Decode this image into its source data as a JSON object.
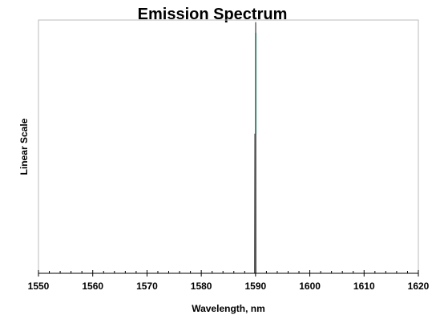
{
  "chart_data": {
    "type": "line",
    "title": "Emission Spectrum",
    "xlabel": "Wavelength, nm",
    "ylabel": "Linear Scale",
    "xlim": [
      1550,
      1620
    ],
    "x_major_ticks": [
      1550,
      1560,
      1570,
      1580,
      1590,
      1600,
      1610,
      1620
    ],
    "x_minor_step": 2,
    "ylim": [
      0,
      1.0
    ],
    "y_tick_labels": false,
    "grid": false,
    "legend": "none",
    "series": [
      {
        "color": "#555555",
        "points": [
          [
            1550,
            0.0
          ],
          [
            1589.8,
            0.0
          ],
          [
            1589.86,
            0.55
          ],
          [
            1589.9,
            0.55
          ],
          [
            1589.93,
            0.0
          ],
          [
            1589.98,
            0.0
          ],
          [
            1590.0,
            0.99
          ],
          [
            1590.05,
            0.99
          ],
          [
            1590.1,
            0.0
          ],
          [
            1620,
            0.0
          ]
        ]
      },
      {
        "color": "#1a7a5a",
        "points": [
          [
            1590.04,
            0.55
          ],
          [
            1590.04,
            0.95
          ]
        ]
      }
    ]
  }
}
